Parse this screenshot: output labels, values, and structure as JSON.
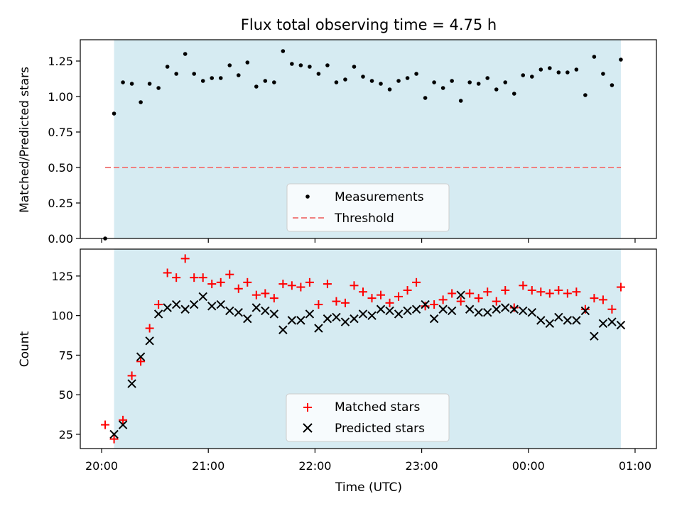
{
  "chart_data": [
    {
      "type": "scatter",
      "panel": "top",
      "title": "Flux total observing time = 4.75 h",
      "ylabel": "Matched/Predicted stars",
      "ylim": [
        0,
        1.4
      ],
      "yticks": [
        0.0,
        0.25,
        0.5,
        0.75,
        1.0,
        1.25
      ],
      "ytick_labels": [
        "0.00",
        "0.25",
        "0.50",
        "0.75",
        "1.00",
        "1.25"
      ],
      "xlim": [
        "19:48",
        "01:12"
      ],
      "xticks": [
        "20:00",
        "21:00",
        "22:00",
        "23:00",
        "00:00",
        "01:00"
      ],
      "shaded_span": {
        "from": "20:07",
        "to": "00:52",
        "color": "#add8e6"
      },
      "series": [
        {
          "name": "Measurements",
          "marker": "dot",
          "color": "#000000",
          "x": [
            "20:02",
            "20:07",
            "20:12",
            "20:17",
            "20:22",
            "20:27",
            "20:32",
            "20:37",
            "20:42",
            "20:47",
            "20:52",
            "20:57",
            "21:02",
            "21:07",
            "21:12",
            "21:17",
            "21:22",
            "21:27",
            "21:32",
            "21:37",
            "21:42",
            "21:47",
            "21:52",
            "21:57",
            "22:02",
            "22:07",
            "22:12",
            "22:17",
            "22:22",
            "22:27",
            "22:32",
            "22:37",
            "22:42",
            "22:47",
            "22:52",
            "22:57",
            "23:02",
            "23:07",
            "23:12",
            "23:17",
            "23:22",
            "23:27",
            "23:32",
            "23:37",
            "23:42",
            "23:47",
            "23:52",
            "23:57",
            "00:02",
            "00:07",
            "00:12",
            "00:17",
            "00:22",
            "00:27",
            "00:32",
            "00:37",
            "00:42",
            "00:47",
            "00:52"
          ],
          "y": [
            0.0,
            0.88,
            1.1,
            1.09,
            0.96,
            1.09,
            1.06,
            1.21,
            1.16,
            1.3,
            1.16,
            1.11,
            1.13,
            1.13,
            1.22,
            1.15,
            1.24,
            1.07,
            1.11,
            1.1,
            1.32,
            1.23,
            1.22,
            1.21,
            1.16,
            1.22,
            1.1,
            1.12,
            1.21,
            1.14,
            1.11,
            1.09,
            1.05,
            1.11,
            1.13,
            1.16,
            0.99,
            1.1,
            1.06,
            1.11,
            0.97,
            1.1,
            1.09,
            1.13,
            1.05,
            1.1,
            1.02,
            1.15,
            1.14,
            1.19,
            1.2,
            1.17,
            1.17,
            1.19,
            1.01,
            1.28,
            1.16,
            1.08,
            1.26
          ]
        },
        {
          "name": "Threshold",
          "marker": "dashed-line",
          "color": "#f08080",
          "x": [
            "20:02",
            "00:52"
          ],
          "y": [
            0.5,
            0.5
          ]
        }
      ],
      "legend": "lower center"
    },
    {
      "type": "scatter",
      "panel": "bottom",
      "ylabel": "Count",
      "xlabel": "Time (UTC)",
      "ylim": [
        16,
        142
      ],
      "yticks": [
        25,
        50,
        75,
        100,
        125
      ],
      "ytick_labels": [
        "25",
        "50",
        "75",
        "100",
        "125"
      ],
      "xlim": [
        "19:48",
        "01:12"
      ],
      "xticks": [
        "20:00",
        "21:00",
        "22:00",
        "23:00",
        "00:00",
        "01:00"
      ],
      "xtick_labels": [
        "20:00",
        "21:00",
        "22:00",
        "23:00",
        "00:00",
        "01:00"
      ],
      "shaded_span": {
        "from": "20:07",
        "to": "00:52",
        "color": "#add8e6"
      },
      "series": [
        {
          "name": "Matched stars",
          "marker": "plus",
          "color": "#ff0000",
          "x": [
            "20:02",
            "20:07",
            "20:12",
            "20:17",
            "20:22",
            "20:27",
            "20:32",
            "20:37",
            "20:42",
            "20:47",
            "20:52",
            "20:57",
            "21:02",
            "21:07",
            "21:12",
            "21:17",
            "21:22",
            "21:27",
            "21:32",
            "21:37",
            "21:42",
            "21:47",
            "21:52",
            "21:57",
            "22:02",
            "22:07",
            "22:12",
            "22:17",
            "22:22",
            "22:27",
            "22:32",
            "22:37",
            "22:42",
            "22:47",
            "22:52",
            "22:57",
            "23:02",
            "23:07",
            "23:12",
            "23:17",
            "23:22",
            "23:27",
            "23:32",
            "23:37",
            "23:42",
            "23:47",
            "23:52",
            "23:57",
            "00:02",
            "00:07",
            "00:12",
            "00:17",
            "00:22",
            "00:27",
            "00:32",
            "00:37",
            "00:42",
            "00:47",
            "00:52"
          ],
          "y": [
            31,
            22,
            34,
            62,
            71,
            92,
            107,
            127,
            124,
            136,
            124,
            124,
            120,
            121,
            126,
            117,
            121,
            113,
            114,
            111,
            120,
            119,
            118,
            121,
            107,
            120,
            109,
            108,
            119,
            115,
            111,
            113,
            108,
            112,
            116,
            121,
            106,
            107,
            110,
            114,
            109,
            114,
            111,
            115,
            109,
            116,
            105,
            119,
            116,
            115,
            114,
            116,
            114,
            115,
            104,
            111,
            110,
            104,
            118
          ]
        },
        {
          "name": "Predicted stars",
          "marker": "x",
          "color": "#000000",
          "x": [
            "20:07",
            "20:12",
            "20:17",
            "20:22",
            "20:27",
            "20:32",
            "20:37",
            "20:42",
            "20:47",
            "20:52",
            "20:57",
            "21:02",
            "21:07",
            "21:12",
            "21:17",
            "21:22",
            "21:27",
            "21:32",
            "21:37",
            "21:42",
            "21:47",
            "21:52",
            "21:57",
            "22:02",
            "22:07",
            "22:12",
            "22:17",
            "22:22",
            "22:27",
            "22:32",
            "22:37",
            "22:42",
            "22:47",
            "22:52",
            "22:57",
            "23:02",
            "23:07",
            "23:12",
            "23:17",
            "23:22",
            "23:27",
            "23:32",
            "23:37",
            "23:42",
            "23:47",
            "23:52",
            "23:57",
            "00:02",
            "00:07",
            "00:12",
            "00:17",
            "00:22",
            "00:27",
            "00:32",
            "00:37",
            "00:42",
            "00:47",
            "00:52"
          ],
          "y": [
            25,
            31,
            57,
            74,
            84,
            101,
            105,
            107,
            104,
            107,
            112,
            106,
            107,
            103,
            102,
            98,
            105,
            103,
            101,
            91,
            97,
            97,
            101,
            92,
            98,
            99,
            96,
            98,
            101,
            100,
            104,
            103,
            101,
            103,
            104,
            107,
            98,
            104,
            103,
            113,
            104,
            102,
            102,
            104,
            105,
            104,
            103,
            102,
            97,
            95,
            99,
            97,
            97,
            103,
            87,
            95,
            96,
            94
          ]
        }
      ],
      "legend": "lower center"
    }
  ]
}
